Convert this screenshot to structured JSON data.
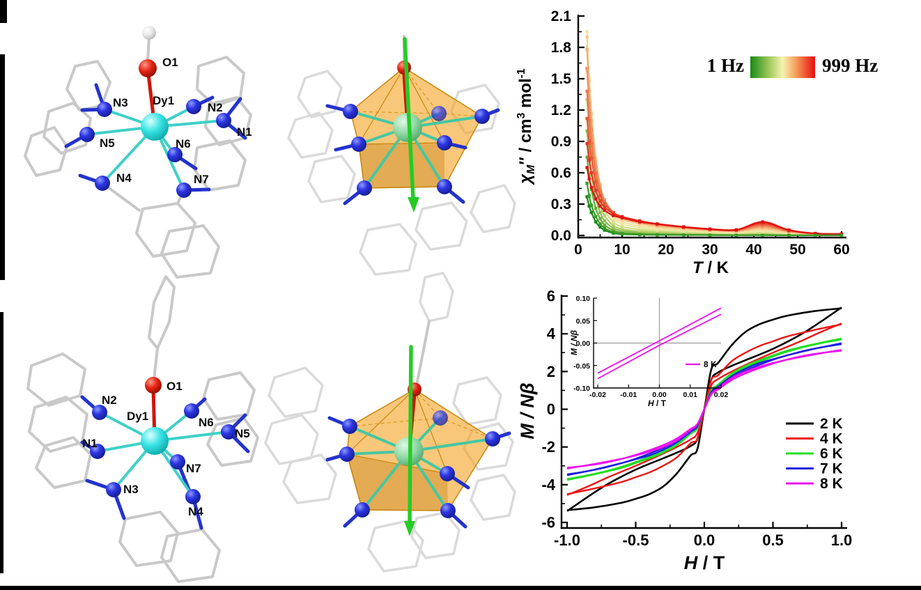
{
  "panels": {
    "structure_a": {
      "name": "Dy complex 1 ball-and-stick structure",
      "labels": {
        "o1": "O1",
        "dy": "Dy1",
        "n1": "N1",
        "n2": "N2",
        "n3": "N3",
        "n4": "N4",
        "n5": "N5",
        "n6": "N6",
        "n7": "N7"
      }
    },
    "polyhedron_a": {
      "name": "Dy coordination polyhedron with anisotropy axis, complex 1"
    },
    "structure_b": {
      "name": "Dy complex 2 ball-and-stick structure",
      "labels": {
        "o1": "O1",
        "dy": "Dy1",
        "n1": "N1",
        "n2": "N2",
        "n3": "N3",
        "n4": "N4",
        "n5": "N5",
        "n6": "N6",
        "n7": "N7"
      }
    },
    "polyhedron_b": {
      "name": "Dy coordination polyhedron with anisotropy axis, complex 2"
    }
  },
  "chart_data": [
    {
      "type": "line",
      "title": "",
      "xlabel": "T / K",
      "ylabel": "chi_M'' / cm3 mol-1",
      "xlabel_segments": [
        {
          "t": "T",
          "i": true
        },
        {
          "t": " / K"
        }
      ],
      "ylabel_segments": [
        {
          "t": "χ",
          "i": true
        },
        {
          "t": "M",
          "i": true,
          "sub": true
        },
        {
          "t": "″"
        },
        {
          "t": " / cm"
        },
        {
          "t": "3",
          "sup": true
        },
        {
          "t": " mol"
        },
        {
          "t": "-1",
          "sup": true
        }
      ],
      "xlim": [
        0,
        61.1
      ],
      "ylim": [
        -0.02,
        2.116
      ],
      "grid": false,
      "xticks": [
        {
          "v": 0,
          "l": "0"
        },
        {
          "v": 10,
          "l": "10"
        },
        {
          "v": 20,
          "l": "20"
        },
        {
          "v": 30,
          "l": "30"
        },
        {
          "v": 40,
          "l": "40"
        },
        {
          "v": 50,
          "l": "50"
        },
        {
          "v": 60,
          "l": "60"
        }
      ],
      "xminor": [
        5,
        15,
        25,
        35,
        45,
        55
      ],
      "yticks": [
        {
          "v": 0.0,
          "l": "0.0"
        },
        {
          "v": 0.3,
          "l": "0.3"
        },
        {
          "v": 0.6,
          "l": "0.6"
        },
        {
          "v": 0.9,
          "l": "0.9"
        },
        {
          "v": 1.2,
          "l": "1.2"
        },
        {
          "v": 1.5,
          "l": "1.5"
        },
        {
          "v": 1.8,
          "l": "1.8"
        },
        {
          "v": 2.1,
          "l": "2.1"
        }
      ],
      "yminor": [
        0.15,
        0.45,
        0.75,
        1.05,
        1.35,
        1.65,
        1.95
      ],
      "legend": {
        "position": "upper right",
        "left_label": "1 Hz",
        "right_label": "999 Hz",
        "gradient_stops": [
          [
            "0%",
            "#178a17"
          ],
          [
            "30%",
            "#a6cb5e"
          ],
          [
            "50%",
            "#f6f2b2"
          ],
          [
            "70%",
            "#f5a05c"
          ],
          [
            "100%",
            "#e60f0f"
          ]
        ]
      },
      "x": [
        2,
        2.5,
        3,
        4,
        5,
        6,
        8,
        10,
        14,
        18,
        24,
        30,
        36,
        42,
        48,
        54,
        60
      ],
      "series": [
        {
          "name": "1 Hz",
          "color": "#178a17",
          "values": [
            0.37,
            0.28,
            0.22,
            0.13,
            0.08,
            0.05,
            0.022,
            0.012,
            0.007,
            0.005,
            0.004,
            0.003,
            0.002,
            0.002,
            0.001,
            0.001,
            0.001
          ]
        },
        {
          "name": "1.7 Hz",
          "color": "#3b9a28",
          "values": [
            0.5,
            0.38,
            0.29,
            0.18,
            0.11,
            0.07,
            0.031,
            0.018,
            0.01,
            0.008,
            0.006,
            0.004,
            0.003,
            0.002,
            0.002,
            0.001,
            0.001
          ]
        },
        {
          "name": "3 Hz",
          "color": "#61ad36",
          "values": [
            0.75,
            0.57,
            0.44,
            0.26,
            0.16,
            0.1,
            0.048,
            0.028,
            0.017,
            0.013,
            0.01,
            0.007,
            0.006,
            0.008,
            0.004,
            0.002,
            0.002
          ]
        },
        {
          "name": "5.5 Hz",
          "color": "#8abd4b",
          "values": [
            1.0,
            0.77,
            0.59,
            0.36,
            0.22,
            0.14,
            0.071,
            0.045,
            0.029,
            0.022,
            0.017,
            0.012,
            0.01,
            0.014,
            0.007,
            0.004,
            0.003
          ]
        },
        {
          "name": "10 Hz",
          "color": "#b2cf68",
          "values": [
            1.3,
            1.0,
            0.77,
            0.47,
            0.29,
            0.19,
            0.096,
            0.061,
            0.04,
            0.031,
            0.023,
            0.017,
            0.014,
            0.021,
            0.01,
            0.005,
            0.004
          ]
        },
        {
          "name": "18 Hz",
          "color": "#d4dd85",
          "values": [
            1.58,
            1.22,
            0.94,
            0.58,
            0.37,
            0.24,
            0.13,
            0.084,
            0.057,
            0.045,
            0.033,
            0.025,
            0.02,
            0.029,
            0.015,
            0.007,
            0.006
          ]
        },
        {
          "name": "32 Hz",
          "color": "#ebe8a2",
          "values": [
            1.8,
            1.39,
            1.08,
            0.67,
            0.43,
            0.29,
            0.16,
            0.11,
            0.074,
            0.058,
            0.043,
            0.032,
            0.026,
            0.039,
            0.019,
            0.01,
            0.007
          ]
        },
        {
          "name": "56 Hz",
          "color": "#f3e3a2",
          "values": [
            1.95,
            1.51,
            1.18,
            0.73,
            0.48,
            0.32,
            0.18,
            0.13,
            0.09,
            0.072,
            0.053,
            0.04,
            0.032,
            0.05,
            0.025,
            0.012,
            0.009
          ]
        },
        {
          "name": "100 Hz",
          "color": "#f6cd8f",
          "values": [
            1.9,
            1.48,
            1.16,
            0.74,
            0.49,
            0.34,
            0.2,
            0.15,
            0.11,
            0.085,
            0.063,
            0.047,
            0.038,
            0.064,
            0.031,
            0.014,
            0.01
          ]
        },
        {
          "name": "178 Hz",
          "color": "#f5b078",
          "values": [
            1.78,
            1.39,
            1.1,
            0.71,
            0.48,
            0.34,
            0.21,
            0.16,
            0.12,
            0.094,
            0.07,
            0.052,
            0.043,
            0.076,
            0.036,
            0.016,
            0.012
          ]
        },
        {
          "name": "316 Hz",
          "color": "#f29363",
          "values": [
            1.6,
            1.26,
            1.01,
            0.66,
            0.46,
            0.34,
            0.22,
            0.17,
            0.13,
            0.1,
            0.077,
            0.057,
            0.047,
            0.088,
            0.04,
            0.017,
            0.013
          ]
        },
        {
          "name": "431 Hz",
          "color": "#ed744c",
          "values": [
            1.38,
            1.1,
            0.88,
            0.59,
            0.42,
            0.32,
            0.22,
            0.17,
            0.13,
            0.11,
            0.08,
            0.059,
            0.05,
            0.099,
            0.044,
            0.018,
            0.013
          ]
        },
        {
          "name": "562 Hz",
          "color": "#e85537",
          "values": [
            1.12,
            0.9,
            0.74,
            0.51,
            0.38,
            0.3,
            0.22,
            0.18,
            0.14,
            0.11,
            0.083,
            0.062,
            0.053,
            0.11,
            0.048,
            0.019,
            0.014
          ]
        },
        {
          "name": "765 Hz",
          "color": "#e33723",
          "values": [
            0.88,
            0.72,
            0.6,
            0.43,
            0.33,
            0.27,
            0.21,
            0.18,
            0.14,
            0.11,
            0.083,
            0.062,
            0.054,
            0.12,
            0.051,
            0.019,
            0.014
          ]
        },
        {
          "name": "999 Hz",
          "color": "#e01111",
          "values": [
            0.65,
            0.54,
            0.46,
            0.35,
            0.28,
            0.24,
            0.19,
            0.17,
            0.13,
            0.11,
            0.08,
            0.059,
            0.053,
            0.13,
            0.053,
            0.018,
            0.013
          ]
        }
      ]
    },
    {
      "type": "line",
      "title": "",
      "xlabel": "H / T",
      "ylabel": "M / Nbeta",
      "xlabel_segments": [
        {
          "t": "H",
          "i": true
        },
        {
          "t": " / T"
        }
      ],
      "ylabel_segments": [
        {
          "t": "M",
          "i": true
        },
        {
          "t": " / N",
          "i": true
        },
        {
          "t": "β",
          "i": true
        }
      ],
      "xlim": [
        -1.041,
        1.041
      ],
      "ylim": [
        -6.3,
        6.07
      ],
      "grid": false,
      "xticks": [
        {
          "v": -1,
          "l": "-1.0"
        },
        {
          "v": -0.5,
          "l": "-0.5"
        },
        {
          "v": 0,
          "l": "0.0"
        },
        {
          "v": 0.5,
          "l": "0.5"
        },
        {
          "v": 1,
          "l": "1.0"
        }
      ],
      "xminor": [
        -0.75,
        -0.25,
        0.25,
        0.75
      ],
      "yticks": [
        {
          "v": -6,
          "l": "-6"
        },
        {
          "v": -4,
          "l": "-4"
        },
        {
          "v": -2,
          "l": "-2"
        },
        {
          "v": 0,
          "l": "0"
        },
        {
          "v": 2,
          "l": "2"
        },
        {
          "v": 4,
          "l": "4"
        },
        {
          "v": 6,
          "l": "6"
        }
      ],
      "yminor": [
        -5,
        -3,
        -1,
        1,
        3,
        5
      ],
      "half_loop_x": [
        1.0,
        0.8,
        0.6,
        0.5,
        0.4,
        0.3,
        0.2,
        0.1,
        0.05,
        0.0,
        -0.05,
        -0.1,
        -0.2,
        -0.3,
        -0.5,
        -0.7,
        -0.85,
        -1.0
      ],
      "series": [
        {
          "name": "2 K",
          "color": "#000000",
          "point_symmetric": true,
          "half_loop_y": [
            5.35,
            5.2,
            4.95,
            4.75,
            4.5,
            4.1,
            3.4,
            2.45,
            2.1,
            0.0,
            -1.55,
            -1.95,
            -2.3,
            -2.6,
            -3.2,
            -3.95,
            -4.65,
            -5.4
          ]
        },
        {
          "name": "4 K",
          "color": "#f01515",
          "point_symmetric": true,
          "half_loop_y": [
            4.5,
            4.2,
            3.85,
            3.6,
            3.35,
            3.0,
            2.55,
            1.8,
            1.55,
            0.0,
            -1.25,
            -1.6,
            -2.0,
            -2.35,
            -3.0,
            -3.6,
            -4.1,
            -4.55
          ]
        },
        {
          "name": "6 K",
          "color": "#22dd22",
          "point_symmetric": true,
          "half_loop_y": [
            3.75,
            3.45,
            3.1,
            2.85,
            2.6,
            2.3,
            1.9,
            1.3,
            1.0,
            0.0,
            -0.95,
            -1.25,
            -1.8,
            -2.2,
            -2.8,
            -3.25,
            -3.5,
            -3.7
          ]
        },
        {
          "name": "7 K",
          "color": "#2020e0",
          "point_symmetric": true,
          "half_loop_y": [
            3.5,
            3.2,
            2.85,
            2.65,
            2.45,
            2.15,
            1.75,
            1.2,
            0.9,
            0.0,
            -0.88,
            -1.15,
            -1.65,
            -2.05,
            -2.62,
            -3.05,
            -3.28,
            -3.45
          ]
        },
        {
          "name": "8 K",
          "color": "#ee10ee",
          "point_symmetric": true,
          "half_loop_y": [
            3.15,
            2.9,
            2.62,
            2.45,
            2.25,
            2.0,
            1.65,
            1.1,
            0.8,
            0.0,
            -0.78,
            -1.05,
            -1.55,
            -1.9,
            -2.42,
            -2.8,
            -2.98,
            -3.1
          ]
        }
      ],
      "legend_entries": [
        {
          "label": "2 K",
          "color": "#000000"
        },
        {
          "label": "4 K",
          "color": "#f01515"
        },
        {
          "label": "6 K",
          "color": "#22dd22"
        },
        {
          "label": "7 K",
          "color": "#2020e0"
        },
        {
          "label": "8 K",
          "color": "#ee10ee"
        }
      ],
      "inset": {
        "xlabel_segments": [
          {
            "t": "H",
            "i": true
          },
          {
            "t": " / T"
          }
        ],
        "ylabel_segments": [
          {
            "t": "M",
            "i": true
          },
          {
            "t": " / N",
            "i": true
          },
          {
            "t": "β",
            "i": true
          }
        ],
        "xlim": [
          -0.0214,
          0.02
        ],
        "ylim": [
          -0.1,
          0.1
        ],
        "xticks": [
          {
            "v": -0.02,
            "l": "-0.02"
          },
          {
            "v": -0.01,
            "l": "-0.01"
          },
          {
            "v": 0,
            "l": "0.00"
          },
          {
            "v": 0.01,
            "l": "0.01"
          },
          {
            "v": 0.02,
            "l": "0.02"
          }
        ],
        "yticks": [
          {
            "v": 0.1,
            "l": "0.10"
          },
          {
            "v": 0.05,
            "l": "0.05"
          },
          {
            "v": 0,
            "l": "0.00"
          },
          {
            "v": -0.05,
            "l": "-0.05"
          },
          {
            "v": -0.1,
            "l": "-0.10"
          }
        ],
        "legend_label": "8 K",
        "legend_color": "#ee10ee",
        "series": [
          {
            "name": "8 K descending",
            "color": "#ee10ee",
            "points": [
              [
                -0.02,
                -0.067
              ],
              [
                0,
                0.005
              ],
              [
                0.02,
                0.078
              ]
            ]
          },
          {
            "name": "8 K ascending",
            "color": "#ee10ee",
            "points": [
              [
                -0.02,
                -0.079
              ],
              [
                0,
                -0.005
              ],
              [
                0.02,
                0.064
              ]
            ]
          }
        ]
      }
    }
  ]
}
